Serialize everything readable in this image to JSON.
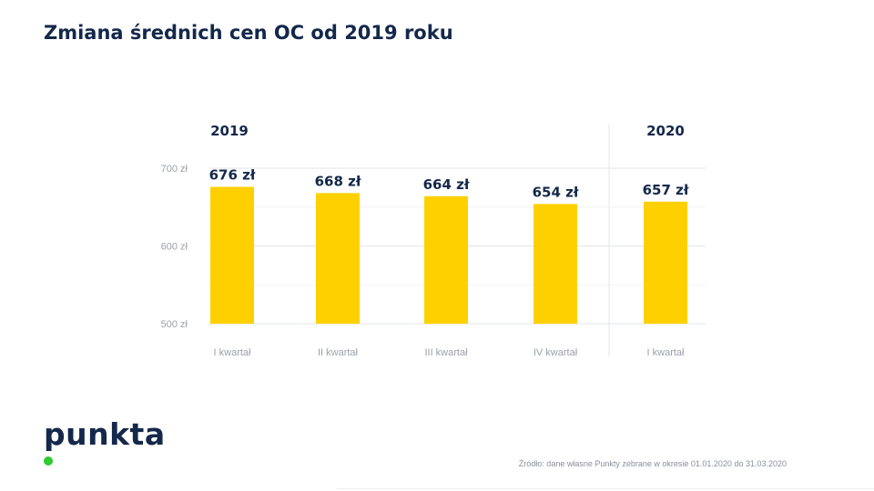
{
  "title": "Zmiana średnich cen OC od 2019 roku",
  "logo": "punkta",
  "source": "Źródło: dane własne Punkty zebrane w okresie 01.01.2020 do 31.03.2020",
  "colors": {
    "bar": "#ffd000",
    "title": "#14284b",
    "grid": "#e3e5e9",
    "axis_text": "#9aa0a9",
    "logo_dot": "#2ecc2e"
  },
  "chart_data": {
    "type": "bar",
    "title": "Zmiana średnich cen OC od 2019 roku",
    "categories": [
      "I kwartał",
      "II kwartał",
      "III kwartał",
      "IV kwartał",
      "I kwartał"
    ],
    "groups": [
      {
        "label": "2019",
        "categories": [
          "I kwartał",
          "II kwartał",
          "III kwartał",
          "IV kwartał"
        ]
      },
      {
        "label": "2020",
        "categories": [
          "I kwartał"
        ]
      }
    ],
    "values": [
      676,
      668,
      664,
      654,
      657
    ],
    "value_labels": [
      "676 zł",
      "668 zł",
      "664 zł",
      "654 zł",
      "657 zł"
    ],
    "ylim": [
      500,
      700
    ],
    "yticks": [
      500,
      600,
      700
    ],
    "ytick_labels": [
      "500 zł",
      "600 zł",
      "700 zł"
    ],
    "xlabel": "",
    "ylabel": "",
    "grid": true,
    "legend": "none"
  }
}
